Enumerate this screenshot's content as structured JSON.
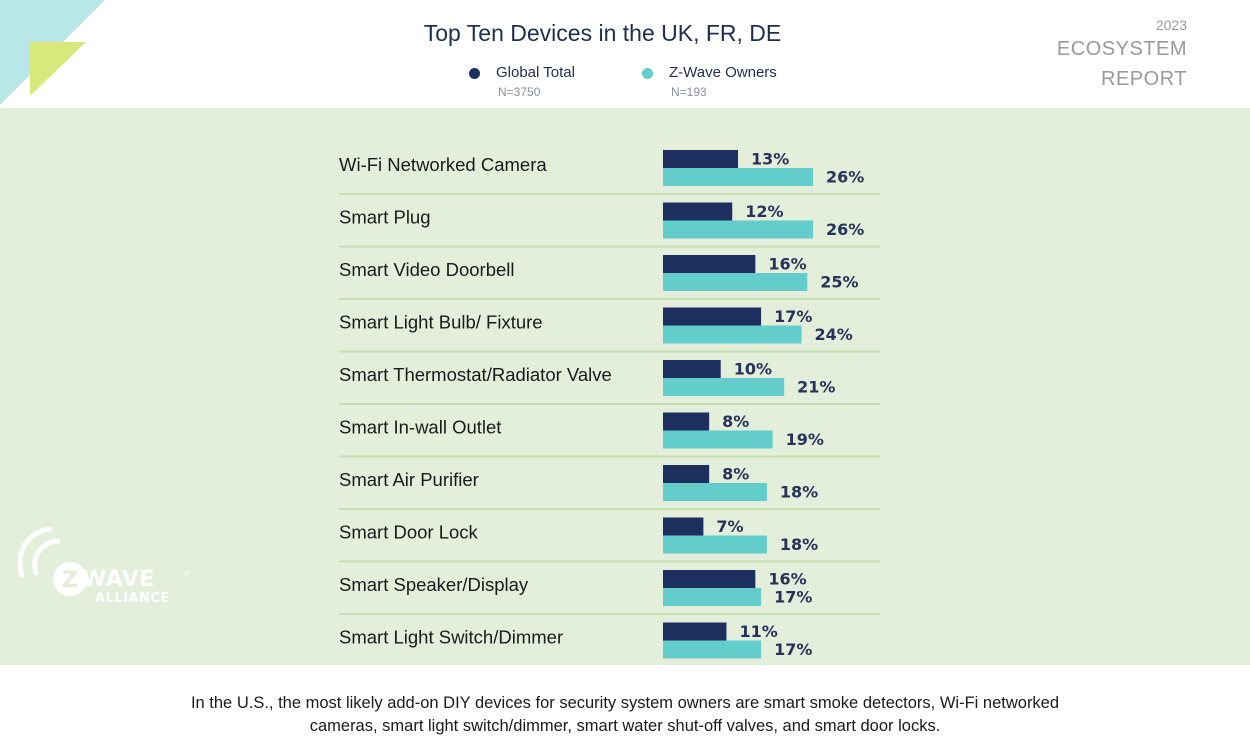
{
  "header": {
    "title": "Top Ten Devices in the UK, FR, DE",
    "report_year": "2023",
    "report_line1": "ECOSYSTEM",
    "report_line2": "REPORT"
  },
  "legend": [
    {
      "label": "Global Total",
      "n": "N=3750",
      "color": "#1d2f5e"
    },
    {
      "label": "Z-Wave Owners",
      "n": "N=193",
      "color": "#62cdca"
    }
  ],
  "logo": {
    "wave_text": "WAVE",
    "z_text": "Z",
    "alliance_text": "ALLIANCE",
    "reg": "®"
  },
  "chart_data": {
    "type": "bar",
    "orientation": "horizontal",
    "categories": [
      "Wi-Fi Networked Camera",
      "Smart Plug",
      "Smart Video Doorbell",
      "Smart Light Bulb/ Fixture",
      "Smart Thermostat/Radiator Valve",
      "Smart In-wall Outlet",
      "Smart Air Purifier",
      "Smart Door Lock",
      "Smart Speaker/Display",
      "Smart Light Switch/Dimmer"
    ],
    "series": [
      {
        "name": "Global Total",
        "color": "#1d2f5e",
        "values": [
          13,
          12,
          16,
          17,
          10,
          8,
          8,
          7,
          16,
          11
        ],
        "labels": [
          "13%",
          "12%",
          "16%",
          "17%",
          "10%",
          "8%",
          "8%",
          "7%",
          "16%",
          "11%"
        ]
      },
      {
        "name": "Z-Wave Owners",
        "color": "#62cdca",
        "values": [
          26,
          26,
          25,
          24,
          21,
          19,
          18,
          18,
          17,
          17
        ],
        "labels": [
          "26%",
          "26%",
          "25%",
          "24%",
          "21%",
          "19%",
          "18%",
          "18%",
          "17%",
          "17%"
        ]
      }
    ],
    "grid": false,
    "legend_position": "top"
  },
  "caption": {
    "line1": "In the U.S., the most likely add-on DIY devices for security system owners are smart smoke detectors, Wi-Fi networked",
    "line2": "cameras, smart light switch/dimmer, smart water shut-off valves, and smart door locks."
  }
}
